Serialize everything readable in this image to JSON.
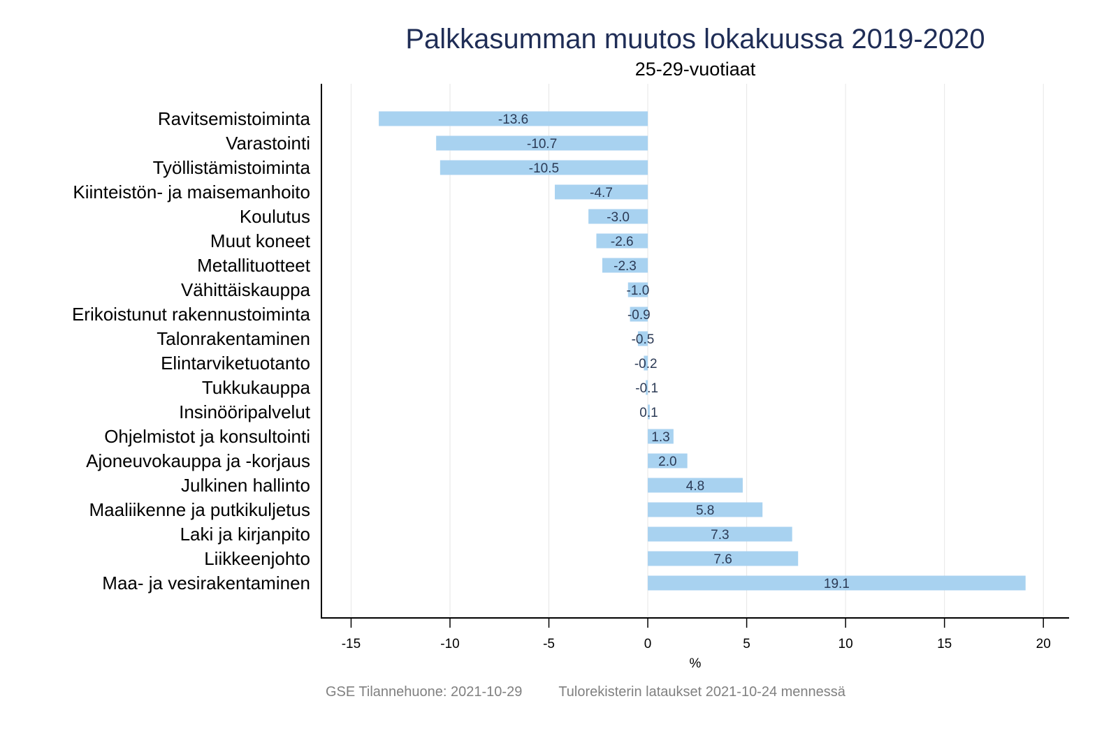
{
  "chart_data": {
    "type": "bar",
    "orientation": "horizontal",
    "title": "Palkkasumman muutos lokakuussa 2019-2020",
    "subtitle": "25-29-vuotiaat",
    "xlabel": "%",
    "ylabel": "",
    "xlim": [
      -16.5,
      21.3
    ],
    "xticks": [
      -15,
      -10,
      -5,
      0,
      5,
      10,
      15,
      20
    ],
    "grid": true,
    "bar_color": "#a8d2f0",
    "label_color": "#2b3a55",
    "categories": [
      "Ravitsemistoiminta",
      "Varastointi",
      "Työllistämistoiminta",
      "Kiinteistön- ja maisemanhoito",
      "Koulutus",
      "Muut koneet",
      "Metallituotteet",
      "Vähittäiskauppa",
      "Erikoistunut rakennustoiminta",
      "Talonrakentaminen",
      "Elintarviketuotanto",
      "Tukkukauppa",
      "Insinööripalvelut",
      "Ohjelmistot ja konsultointi",
      "Ajoneuvokauppa ja -korjaus",
      "Julkinen hallinto",
      "Maaliikenne ja putkikuljetus",
      "Laki ja kirjanpito",
      "Liikkeenjohto",
      "Maa- ja vesirakentaminen"
    ],
    "values": [
      -13.6,
      -10.7,
      -10.5,
      -4.7,
      -3.0,
      -2.6,
      -2.3,
      -1.0,
      -0.9,
      -0.5,
      -0.2,
      -0.1,
      0.1,
      1.3,
      2.0,
      4.8,
      5.8,
      7.3,
      7.6,
      19.1
    ],
    "value_labels": [
      "-13.6",
      "-10.7",
      "-10.5",
      "-4.7",
      "-3.0",
      "-2.6",
      "-2.3",
      "-1.0",
      "-0.9",
      "-0.5",
      "-0.2",
      "-0.1",
      "0.1",
      "1.3",
      "2.0",
      "4.8",
      "5.8",
      "7.3",
      "7.6",
      "19.1"
    ]
  },
  "footer": {
    "source": "GSE Tilannehuone: 2021-10-29",
    "note": "Tulorekisterin lataukset 2021-10-24 mennessä"
  }
}
